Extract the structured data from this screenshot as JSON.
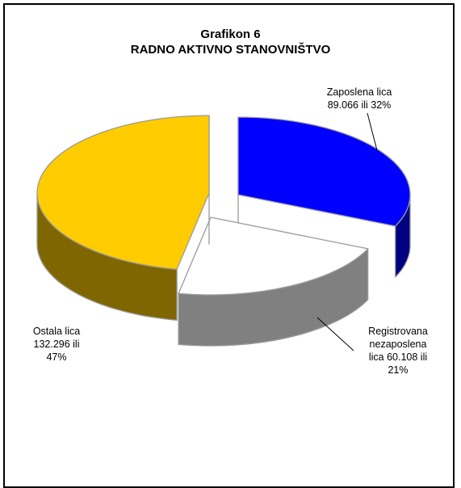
{
  "chart_data": {
    "type": "pie",
    "style": "3d-exploded",
    "title": "Grafikon 6",
    "subtitle": "RADNO AKTIVNO STANOVNIŠTVO",
    "slices": [
      {
        "key": "zaposlena",
        "label_lines": [
          "Zaposlena lica",
          "89.066 ili 32%"
        ],
        "value": 89066,
        "percent": 32,
        "color": "#0000ff",
        "side_color": "#000080"
      },
      {
        "key": "registrovana",
        "label_lines": [
          "Registrovana",
          "nezaposlena",
          "lica 60.108 ili",
          "21%"
        ],
        "value": 60108,
        "percent": 21,
        "color": "#ffffff",
        "side_color": "#808080"
      },
      {
        "key": "ostala",
        "label_lines": [
          "Ostala lica",
          "132.296 ili",
          "47%"
        ],
        "value": 132296,
        "percent": 47,
        "color": "#ffcc00",
        "side_color": "#806600"
      }
    ],
    "legend": "none"
  }
}
